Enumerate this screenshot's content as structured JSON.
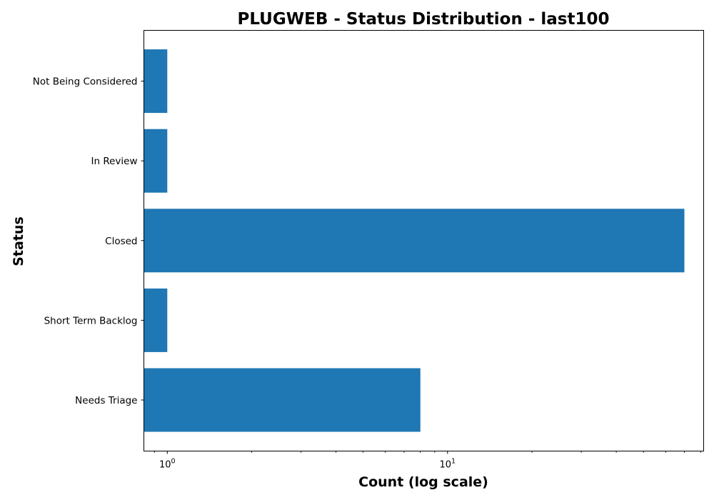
{
  "chart_data": {
    "type": "bar",
    "orientation": "horizontal",
    "title": "PLUGWEB - Status Distribution - last100",
    "xlabel": "Count (log scale)",
    "ylabel": "Status",
    "x_scale": "log",
    "xlim": [
      0.825,
      82
    ],
    "x_major_ticks": [
      {
        "value": 1,
        "base": "10",
        "exp": "0"
      },
      {
        "value": 10,
        "base": "10",
        "exp": "1"
      }
    ],
    "categories": [
      "Needs Triage",
      "Short Term Backlog",
      "Closed",
      "In Review",
      "Not Being Considered"
    ],
    "values": [
      8,
      1,
      70,
      1,
      1
    ],
    "bar_color": "#1f77b4",
    "grid": false,
    "legend": "none"
  }
}
